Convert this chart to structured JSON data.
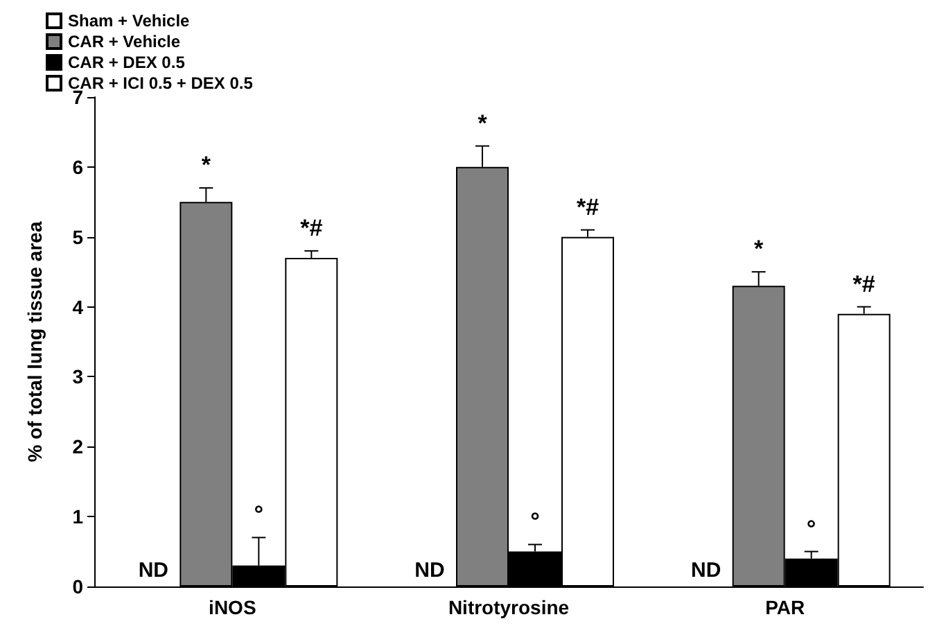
{
  "chart_data": {
    "type": "bar",
    "ylabel": "% of total lung tissue area",
    "categories": [
      "iNOS",
      "Nitrotyrosine",
      "PAR"
    ],
    "series": [
      {
        "name": "Sham + Vehicle",
        "color": "#ffffff",
        "values": [
          null,
          null,
          null
        ],
        "value_labels": [
          "ND",
          "ND",
          "ND"
        ]
      },
      {
        "name": "CAR + Vehicle",
        "color": "#808080",
        "values": [
          5.5,
          6.0,
          4.3
        ],
        "errors": [
          0.2,
          0.3,
          0.2
        ],
        "value_labels": [
          "*",
          "*",
          "*"
        ]
      },
      {
        "name": "CAR + DEX 0.5",
        "color": "#000000",
        "values": [
          0.3,
          0.5,
          0.4
        ],
        "errors": [
          0.4,
          0.1,
          0.1
        ],
        "value_labels": [
          "°",
          "°",
          "°"
        ]
      },
      {
        "name": "CAR + ICI 0.5 + DEX 0.5",
        "color": "#ffffff",
        "values": [
          4.7,
          5.0,
          3.9
        ],
        "errors": [
          0.1,
          0.1,
          0.1
        ],
        "value_labels": [
          "*#",
          "*#",
          "*#"
        ]
      }
    ],
    "ylim": [
      0,
      7
    ],
    "yticks": [
      0,
      1,
      2,
      3,
      4,
      5,
      6,
      7
    ],
    "grid": false,
    "legend": "top left"
  }
}
